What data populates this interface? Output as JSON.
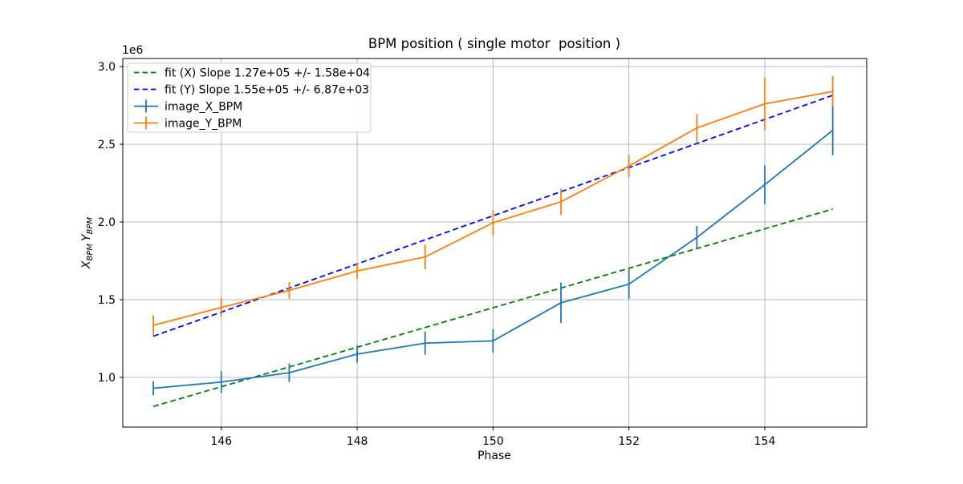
{
  "figure": {
    "title": "BPM position ( single motor  position )",
    "offset_text": "1e6",
    "xlabel": "Phase",
    "ylabel": {
      "v1": "X",
      "s1": "BPM",
      "v2": "Y",
      "s2": "BPM"
    }
  },
  "chart_data": {
    "type": "line",
    "title": "BPM position ( single motor  position )",
    "xlabel": "Phase",
    "ylabel": "X_BPM Y_BPM",
    "y_offset_label": "1e6",
    "grid": true,
    "legend_position": "upper left",
    "xlim": [
      144.55,
      155.5
    ],
    "ylim": [
      680000,
      3052000
    ],
    "xticks": [
      146,
      148,
      150,
      152,
      154
    ],
    "yticks": [
      1000000,
      1500000,
      2000000,
      2500000,
      3000000
    ],
    "ytick_labels": [
      "1.0",
      "1.5",
      "2.0",
      "2.5",
      "3.0"
    ],
    "x": [
      145,
      146,
      147,
      148,
      149,
      150,
      151,
      152,
      153,
      154,
      155
    ],
    "series": [
      {
        "name": "fit (X) Slope 1.27e+05 +/- 1.58e+04",
        "kind": "fit-line",
        "line_style": "dashed",
        "color": "#008000",
        "slope": 127000,
        "slope_error": 15800,
        "x": [
          145,
          155
        ],
        "values": [
          813000,
          2083000
        ]
      },
      {
        "name": "fit (Y) Slope 1.55e+05 +/- 6.87e+03",
        "kind": "fit-line",
        "line_style": "dashed",
        "color": "#0000ff",
        "slope": 155000,
        "slope_error": 6870,
        "x": [
          145,
          155
        ],
        "values": [
          1265000,
          2815000
        ]
      },
      {
        "name": "image_X_BPM",
        "kind": "errorbar",
        "line_style": "solid",
        "color": "#1f77b4",
        "x": [
          145,
          146,
          147,
          148,
          149,
          150,
          151,
          152,
          153,
          154,
          155
        ],
        "values": [
          930000,
          970000,
          1030000,
          1150000,
          1220000,
          1235000,
          1480000,
          1600000,
          1900000,
          2240000,
          2590000
        ],
        "errors": [
          45000,
          70000,
          60000,
          55000,
          75000,
          75000,
          130000,
          95000,
          75000,
          125000,
          160000
        ]
      },
      {
        "name": "image_Y_BPM",
        "kind": "errorbar",
        "line_style": "solid",
        "color": "#ff7f0e",
        "x": [
          145,
          146,
          147,
          148,
          149,
          150,
          151,
          152,
          153,
          154,
          155
        ],
        "values": [
          1335000,
          1450000,
          1560000,
          1685000,
          1775000,
          1995000,
          2130000,
          2360000,
          2605000,
          2760000,
          2840000
        ],
        "errors": [
          65000,
          60000,
          55000,
          50000,
          80000,
          80000,
          85000,
          70000,
          90000,
          170000,
          100000
        ]
      }
    ]
  }
}
